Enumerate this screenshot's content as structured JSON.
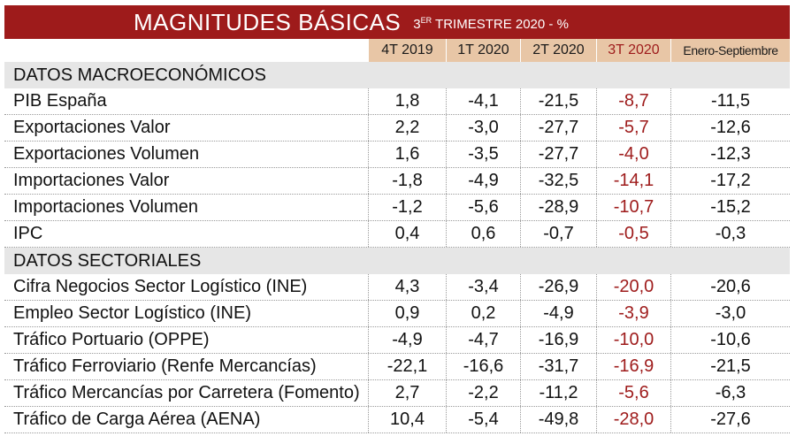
{
  "title": {
    "main": "MAGNITUDES BÁSICAS",
    "sub_prefix": "3",
    "sub_sup": "ER",
    "sub_rest": " TRIMESTRE 2020 - %"
  },
  "columns": [
    "4T 2019",
    "1T 2020",
    "2T 2020",
    "3T 2020",
    "Enero-Septiembre"
  ],
  "sections": [
    {
      "title": "DATOS MACROECONÓMICOS",
      "rows": [
        {
          "label": "PIB España",
          "values": [
            "1,8",
            "-4,1",
            "-21,5",
            "-8,7",
            "-11,5"
          ]
        },
        {
          "label": "Exportaciones Valor",
          "values": [
            "2,2",
            "-3,0",
            "-27,7",
            "-5,7",
            "-12,6"
          ]
        },
        {
          "label": "Exportaciones Volumen",
          "values": [
            "1,6",
            "-3,5",
            "-27,7",
            "-4,0",
            "-12,3"
          ]
        },
        {
          "label": "Importaciones Valor",
          "values": [
            "-1,8",
            "-4,9",
            "-32,5",
            "-14,1",
            "-17,2"
          ]
        },
        {
          "label": "Importaciones Volumen",
          "values": [
            "-1,2",
            "-5,6",
            "-28,9",
            "-10,7",
            "-15,2"
          ]
        },
        {
          "label": "IPC",
          "values": [
            "0,4",
            "0,6",
            "-0,7",
            "-0,5",
            "-0,3"
          ]
        }
      ]
    },
    {
      "title": "DATOS SECTORIALES",
      "rows": [
        {
          "label": "Cifra Negocios Sector Logístico (INE)",
          "values": [
            "4,3",
            "-3,4",
            "-26,9",
            "-20,0",
            "-20,6"
          ]
        },
        {
          "label": "Empleo Sector Logístico (INE)",
          "values": [
            "0,9",
            "0,2",
            "-4,9",
            "-3,9",
            "-3,0"
          ]
        },
        {
          "label": "Tráfico Portuario (OPPE)",
          "values": [
            "-4,9",
            "-4,7",
            "-16,9",
            "-10,0",
            "-10,6"
          ]
        },
        {
          "label": "Tráfico Ferroviario (Renfe Mercancías)",
          "values": [
            "-22,1",
            "-16,6",
            "-31,7",
            "-16,9",
            "-21,5"
          ]
        },
        {
          "label": "Tráfico Mercancías por Carretera (Fomento)",
          "values": [
            "2,7",
            "-2,2",
            "-11,2",
            "-5,6",
            "-6,3"
          ]
        },
        {
          "label": "Tráfico de Carga Aérea (AENA)",
          "values": [
            "10,4",
            "-5,4",
            "-49,8",
            "-28,0",
            "-27,6"
          ]
        }
      ]
    }
  ],
  "colors": {
    "accent": "#9e1b1b",
    "header_bg": "#e8c6a6",
    "section_bg": "#e6e6e6"
  }
}
